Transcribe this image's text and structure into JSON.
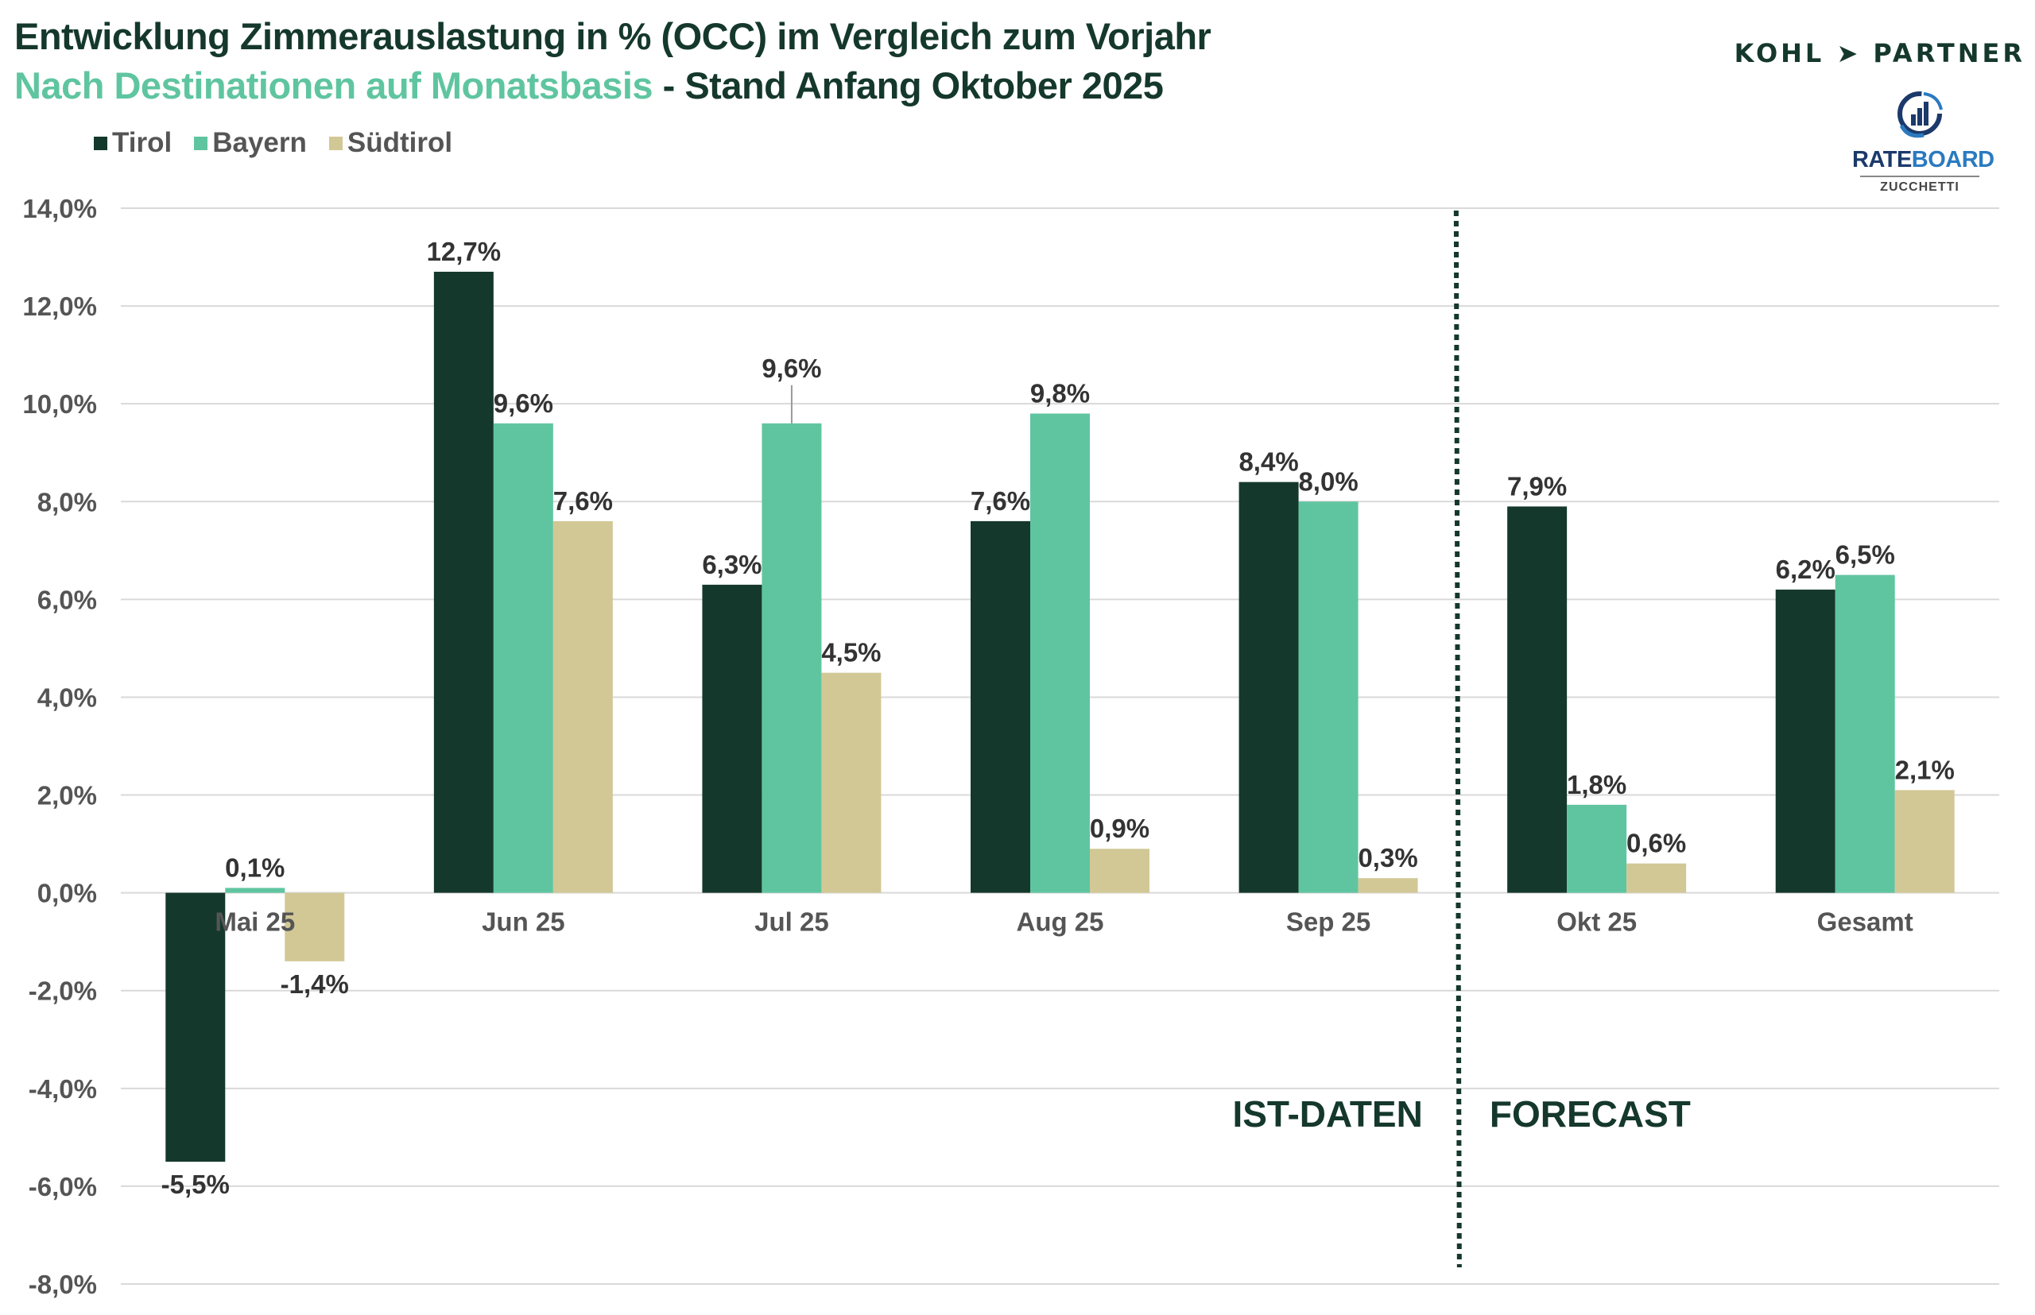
{
  "header": {
    "title": "Entwicklung Zimmerauslastung in % (OCC) im Vergleich zum Vorjahr",
    "subtitle_accent": "Nach Destinationen auf Monatsbasis",
    "subtitle_rest": " - Stand Anfang Oktober 2025"
  },
  "logos": {
    "kohl_partner": "KOHL ➤ PARTNER",
    "rateboard_rate": "RATE",
    "rateboard_board": "BOARD",
    "rateboard_sub": "ZUCCHETTI"
  },
  "colors": {
    "tirol": "#15382c",
    "bayern": "#5fc5a0",
    "suedtirol": "#d2c896",
    "title": "#15382c",
    "accent": "#5fc5a0",
    "grid": "#d9d9d9"
  },
  "chart_data": {
    "type": "bar",
    "title": "Entwicklung Zimmerauslastung in % (OCC) im Vergleich zum Vorjahr",
    "subtitle": "Nach Destinationen auf Monatsbasis - Stand Anfang Oktober 2025",
    "xlabel": "",
    "ylabel": "",
    "categories": [
      "Mai 25",
      "Jun 25",
      "Jul 25",
      "Aug 25",
      "Sep 25",
      "Okt 25",
      "Gesamt"
    ],
    "series": [
      {
        "name": "Tirol",
        "color": "#15382c",
        "values": [
          -5.5,
          12.7,
          6.3,
          7.6,
          8.4,
          7.9,
          6.2
        ],
        "labels": [
          "-5,5%",
          "12,7%",
          "6,3%",
          "7,6%",
          "8,4%",
          "7,9%",
          "6,2%"
        ]
      },
      {
        "name": "Bayern",
        "color": "#5fc5a0",
        "values": [
          0.1,
          9.6,
          9.6,
          9.8,
          8.0,
          1.8,
          6.5
        ],
        "labels": [
          "0,1%",
          "9,6%",
          "9,6%",
          "9,8%",
          "8,0%",
          "1,8%",
          "6,5%"
        ]
      },
      {
        "name": "Südtirol",
        "color": "#d2c896",
        "values": [
          -1.4,
          7.6,
          4.5,
          0.9,
          0.3,
          0.6,
          2.1
        ],
        "labels": [
          "-1,4%",
          "7,6%",
          "4,5%",
          "0,9%",
          "0,3%",
          "0,6%",
          "2,1%"
        ]
      }
    ],
    "ylim": [
      -8,
      14
    ],
    "yticks": [
      14,
      12,
      10,
      8,
      6,
      4,
      2,
      0,
      -2,
      -4,
      -6,
      -8
    ],
    "ytick_labels": [
      "14,0%",
      "12,0%",
      "10,0%",
      "8,0%",
      "6,0%",
      "4,0%",
      "2,0%",
      "0,0%",
      "-2,0%",
      "-4,0%",
      "-6,0%",
      "-8,0%"
    ],
    "grid": true,
    "legend": [
      "Tirol",
      "Bayern",
      "Südtirol"
    ],
    "legend_position": "top-left",
    "divider_after_category": "Sep 25",
    "annotations": [
      "IST-DATEN",
      "FORECAST"
    ]
  }
}
